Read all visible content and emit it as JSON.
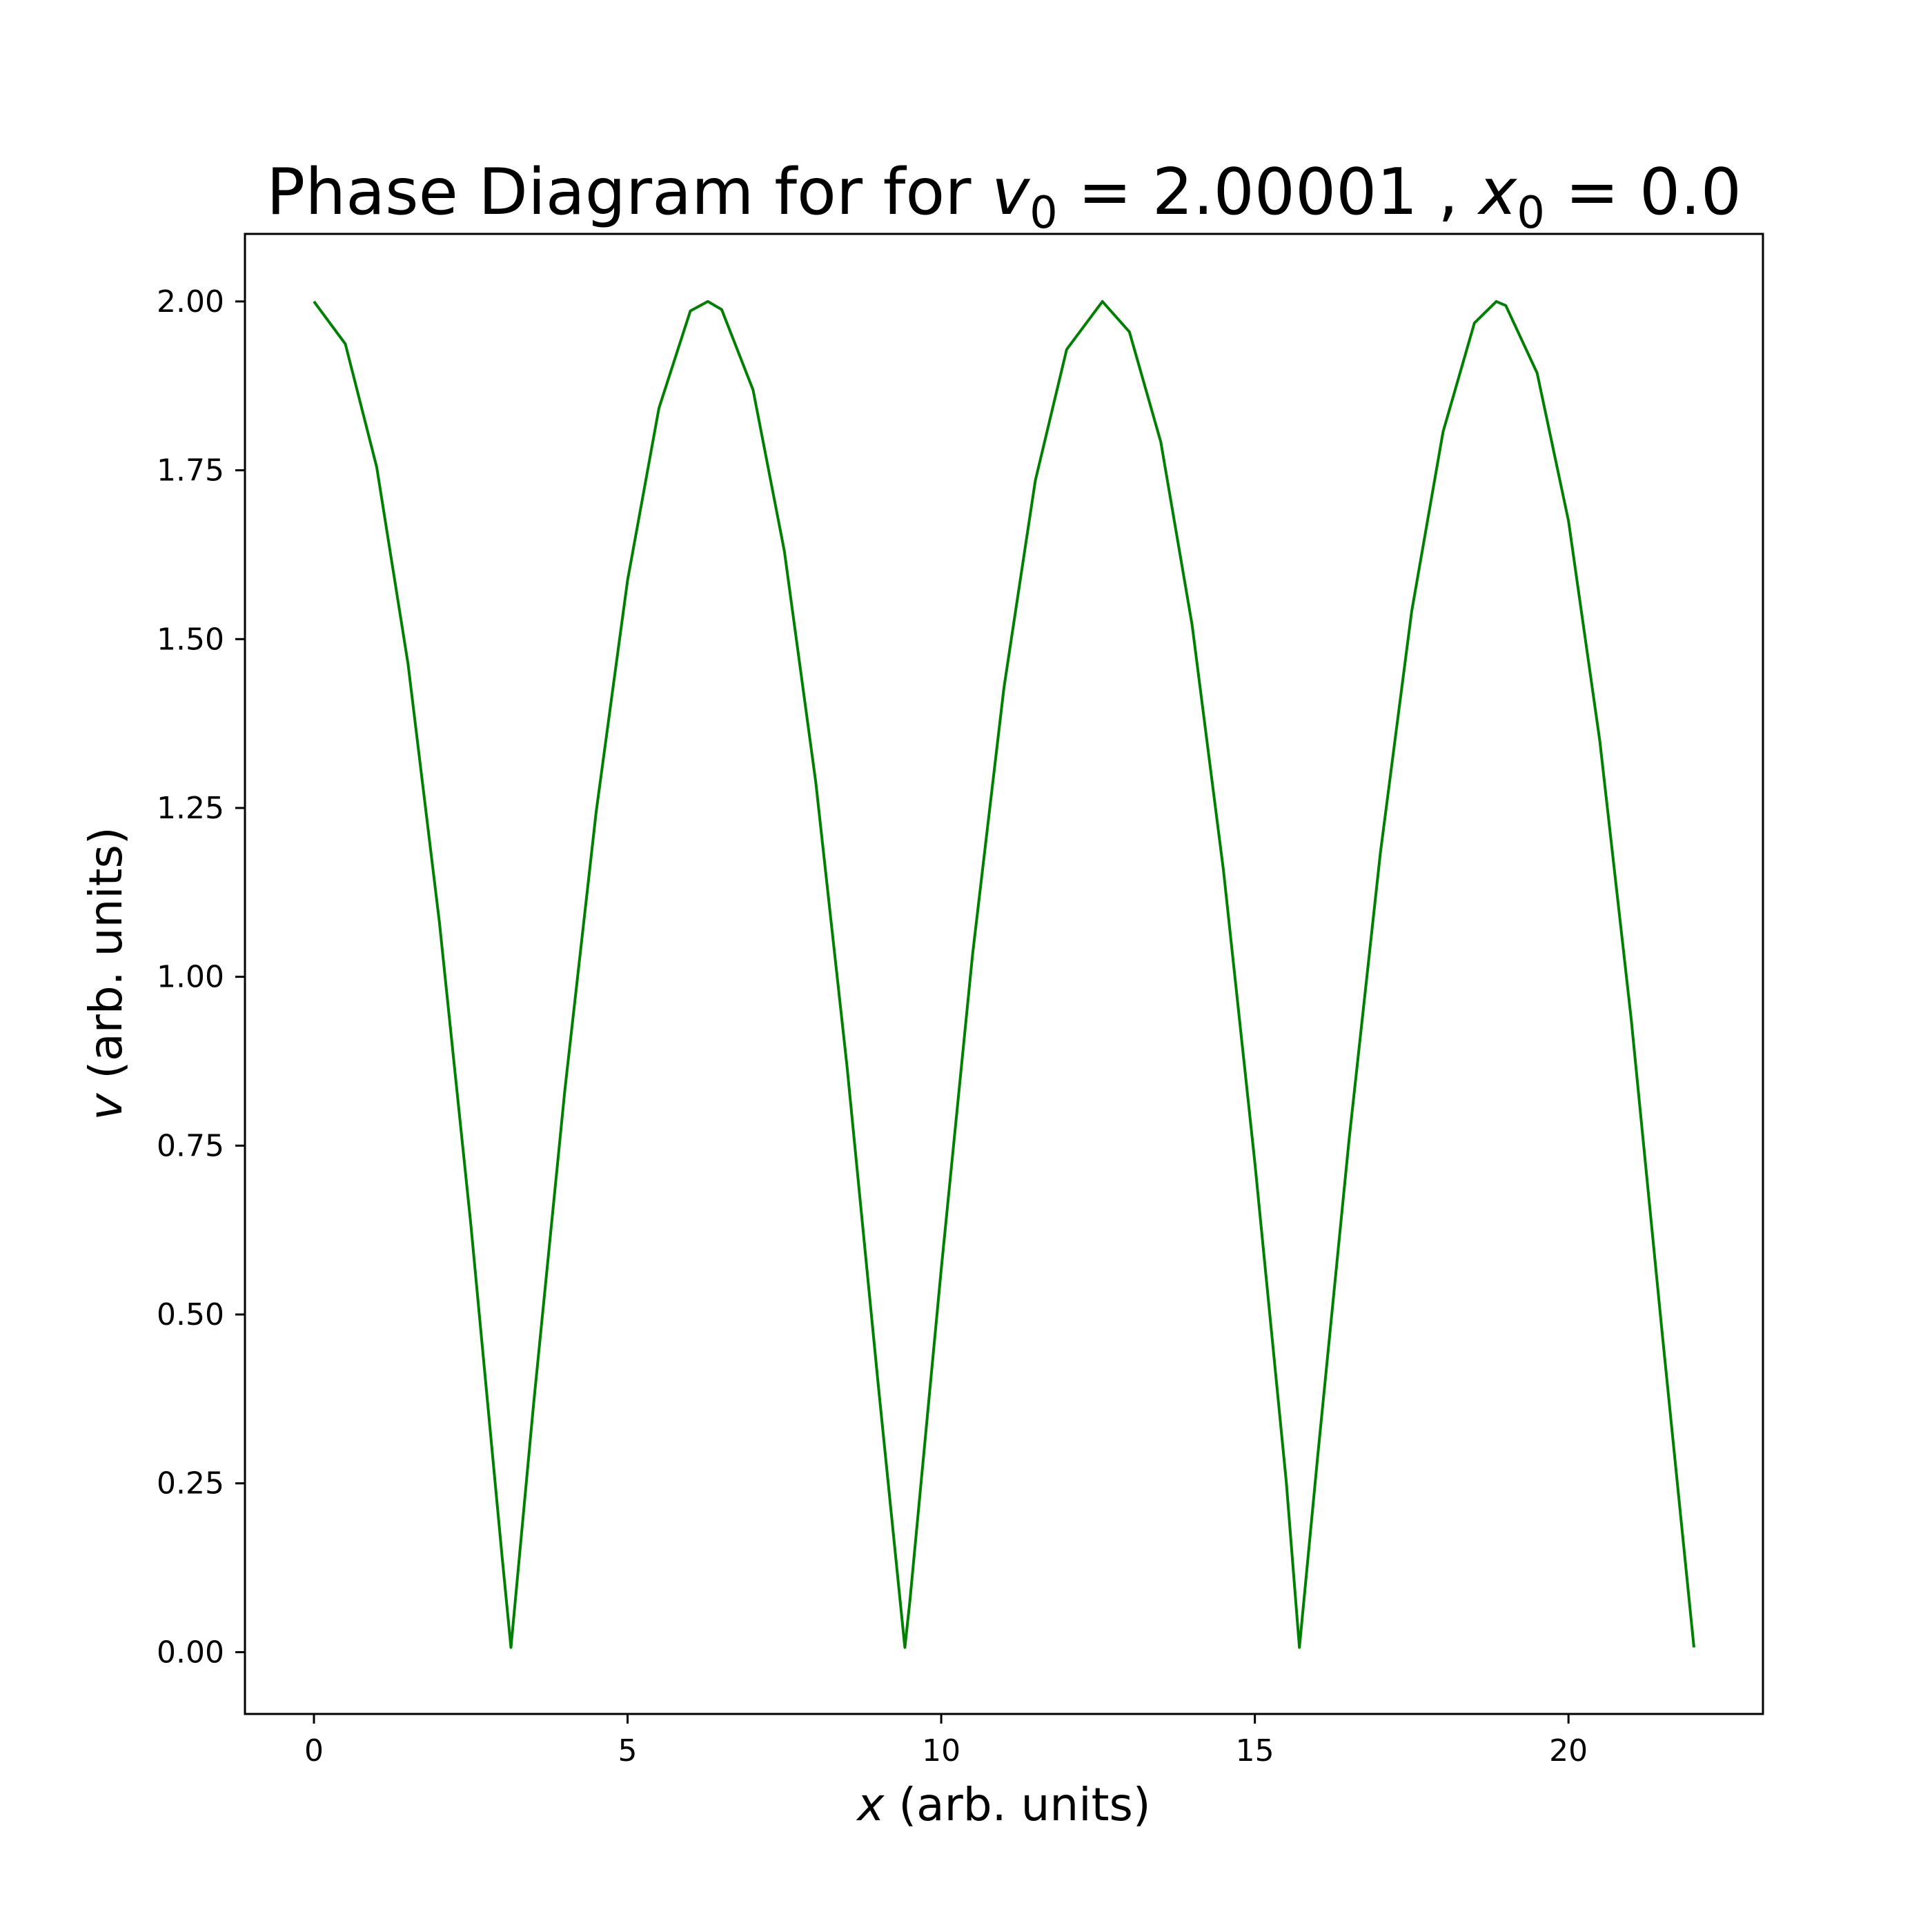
{
  "colors": {
    "line": "#008000",
    "axes": "#000000",
    "background": "#ffffff"
  },
  "chart_data": {
    "type": "line",
    "title": {
      "prefix": "Phase Diagram for for ",
      "v_symbol": "v",
      "v_sub": "0",
      "v_eq": " = 2.00001 , ",
      "x_symbol": "x",
      "x_sub": "0",
      "x_eq": " = 0.0"
    },
    "xlabel": {
      "symbol": "x",
      "text": " (arb. units)"
    },
    "ylabel": {
      "symbol": "v",
      "text": " (arb. units)"
    },
    "xlim": [
      -1.1,
      23.1
    ],
    "ylim": [
      -0.0915,
      2.1
    ],
    "xticks": [
      {
        "value": 0,
        "label": "0"
      },
      {
        "value": 5,
        "label": "5"
      },
      {
        "value": 10,
        "label": "10"
      },
      {
        "value": 15,
        "label": "15"
      },
      {
        "value": 20,
        "label": "20"
      }
    ],
    "yticks": [
      {
        "value": 0.0,
        "label": "0.00"
      },
      {
        "value": 0.25,
        "label": "0.25"
      },
      {
        "value": 0.5,
        "label": "0.50"
      },
      {
        "value": 0.75,
        "label": "0.75"
      },
      {
        "value": 1.0,
        "label": "1.00"
      },
      {
        "value": 1.25,
        "label": "1.25"
      },
      {
        "value": 1.5,
        "label": "1.50"
      },
      {
        "value": 1.75,
        "label": "1.75"
      },
      {
        "value": 2.0,
        "label": "2.00"
      }
    ],
    "grid": false,
    "series": [
      {
        "x": [
          0,
          0.5,
          1.0,
          1.5,
          2.0,
          2.5,
          3.0,
          3.14,
          3.5,
          4.0,
          4.5,
          5.0,
          5.5,
          6.0,
          6.28,
          6.5,
          7.0,
          7.5,
          8.0,
          8.5,
          9.0,
          9.42,
          9.5,
          10.0,
          10.5,
          11.0,
          11.5,
          12.0,
          12.57,
          13.0,
          13.5,
          14.0,
          14.5,
          15.0,
          15.5,
          15.71,
          16.0,
          16.5,
          17.0,
          17.5,
          18.0,
          18.5,
          18.85,
          19.0,
          19.5,
          20.0,
          20.5,
          21.0,
          21.5,
          22.0
        ],
        "y": [
          2.0,
          1.937,
          1.755,
          1.463,
          1.081,
          0.634,
          0.141,
          0.007,
          0.366,
          0.832,
          1.245,
          1.587,
          1.842,
          1.986,
          2.0,
          1.988,
          1.869,
          1.63,
          1.288,
          0.866,
          0.392,
          0.007,
          0.075,
          0.567,
          1.033,
          1.428,
          1.735,
          1.929,
          2.0,
          1.955,
          1.792,
          1.521,
          1.157,
          0.725,
          0.253,
          0.007,
          0.288,
          0.757,
          1.183,
          1.541,
          1.807,
          1.968,
          2.0,
          1.994,
          1.894,
          1.675,
          1.349,
          0.937,
          0.467,
          0.007
        ]
      }
    ]
  }
}
